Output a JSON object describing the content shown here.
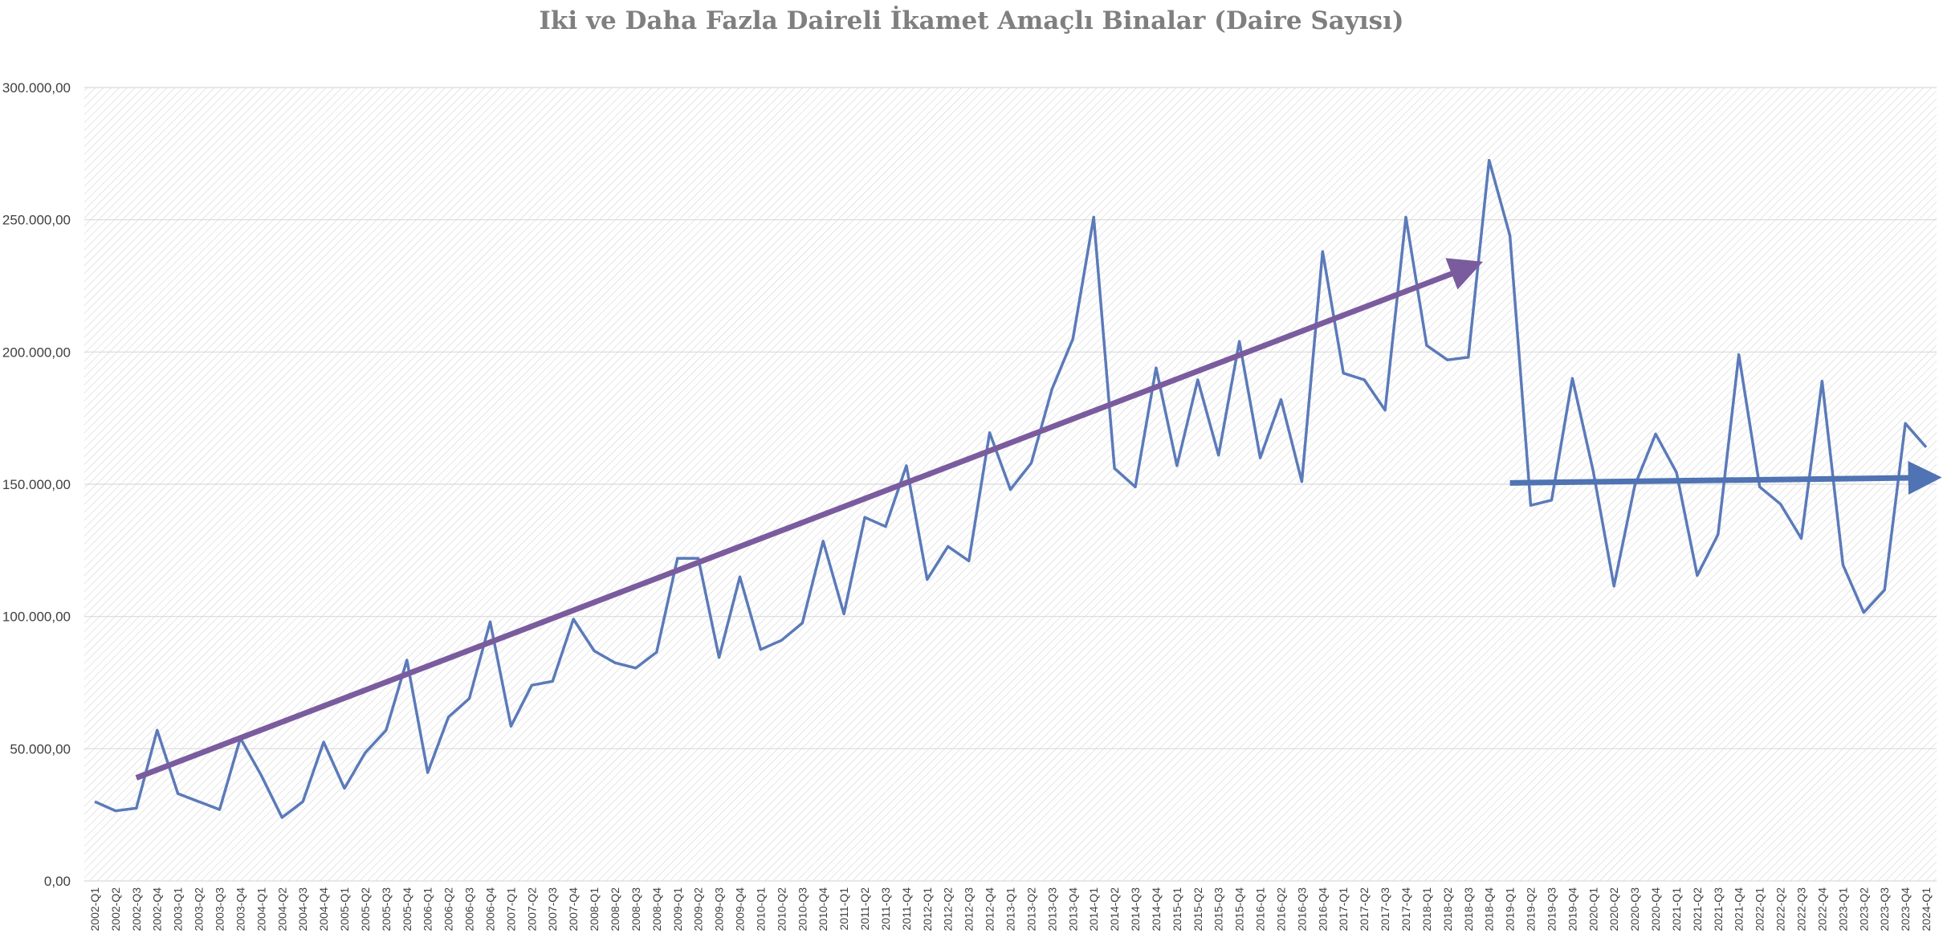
{
  "chart_data": {
    "type": "line",
    "title": "Iki ve Daha Fazla Daireli İkamet Amaçlı Binalar (Daire Sayısı)",
    "xlabel": "",
    "ylabel": "",
    "ylim": [
      0,
      300000
    ],
    "yticks": [
      0,
      50000,
      100000,
      150000,
      200000,
      250000,
      300000
    ],
    "ytick_labels": [
      "0,00",
      "50.000,00",
      "100.000,00",
      "150.000,00",
      "200.000,00",
      "250.000,00",
      "300.000,00"
    ],
    "grid": true,
    "legend": "none",
    "colors": {
      "series": "#5b7ab8",
      "trend1": "#7a5c9e",
      "trend2": "#4f73b3",
      "grid": "#d9d9d9",
      "hatch": "#d0d0d0"
    },
    "categories": [
      "2002-Q1",
      "2002-Q2",
      "2002-Q3",
      "2002-Q4",
      "2003-Q1",
      "2003-Q2",
      "2003-Q3",
      "2003-Q4",
      "2004-Q1",
      "2004-Q2",
      "2004-Q3",
      "2004-Q4",
      "2005-Q1",
      "2005-Q2",
      "2005-Q3",
      "2005-Q4",
      "2006-Q1",
      "2006-Q2",
      "2006-Q3",
      "2006-Q4",
      "2007-Q1",
      "2007-Q2",
      "2007-Q3",
      "2007-Q4",
      "2008-Q1",
      "2008-Q2",
      "2008-Q3",
      "2008-Q4",
      "2009-Q1",
      "2009-Q2",
      "2009-Q3",
      "2009-Q4",
      "2010-Q1",
      "2010-Q2",
      "2010-Q3",
      "2010-Q4",
      "2011-Q1",
      "2011-Q2",
      "2011-Q3",
      "2011-Q4",
      "2012-Q1",
      "2012-Q2",
      "2012-Q3",
      "2012-Q4",
      "2013-Q1",
      "2013-Q2",
      "2013-Q3",
      "2013-Q4",
      "2014-Q1",
      "2014-Q2",
      "2014-Q3",
      "2014-Q4",
      "2015-Q1",
      "2015-Q2",
      "2015-Q3",
      "2015-Q4",
      "2016-Q1",
      "2016-Q2",
      "2016-Q3",
      "2016-Q4",
      "2017-Q1",
      "2017-Q2",
      "2017-Q3",
      "2017-Q4",
      "2018-Q1",
      "2018-Q2",
      "2018-Q3",
      "2018-Q4",
      "2019-Q1",
      "2019-Q2",
      "2019-Q3",
      "2019-Q4",
      "2020-Q1",
      "2020-Q2",
      "2020-Q3",
      "2020-Q4",
      "2021-Q1",
      "2021-Q2",
      "2021-Q3",
      "2021-Q4",
      "2022-Q1",
      "2022-Q2",
      "2022-Q3",
      "2022-Q4",
      "2023-Q1",
      "2023-Q2",
      "2023-Q3",
      "2023-Q4",
      "2024-Q1"
    ],
    "values": [
      30000,
      26500,
      27500,
      57000,
      33000,
      30000,
      27000,
      54000,
      40000,
      24000,
      30000,
      52500,
      35000,
      48500,
      57000,
      83500,
      41000,
      62000,
      69000,
      98000,
      58500,
      74000,
      75500,
      99000,
      87000,
      82500,
      80500,
      86500,
      122000,
      122000,
      84500,
      115000,
      87500,
      91000,
      97500,
      128500,
      101000,
      137500,
      134000,
      157000,
      114000,
      126500,
      121000,
      169500,
      148000,
      158000,
      186000,
      205000,
      251000,
      156000,
      149000,
      194000,
      157000,
      189500,
      161000,
      204000,
      160000,
      182000,
      151000,
      238000,
      192000,
      189500,
      178000,
      251000,
      202500,
      197000,
      198000,
      272500,
      244000,
      142000,
      144000,
      190000,
      155000,
      111500,
      149500,
      169000,
      154500,
      115500,
      131000,
      199000,
      149000,
      142500,
      129500,
      189000,
      119500,
      101500,
      110000,
      173000,
      164000
    ],
    "annotations": [
      {
        "type": "trend-arrow",
        "from": [
          "2002-Q3",
          39000
        ],
        "to": [
          "2018-Q3",
          232000
        ],
        "color": "#7a5c9e"
      },
      {
        "type": "trend-arrow",
        "from": [
          "2019-Q1",
          150500
        ],
        "to": [
          "2024-Q1",
          152500
        ],
        "color": "#4f73b3"
      }
    ]
  }
}
